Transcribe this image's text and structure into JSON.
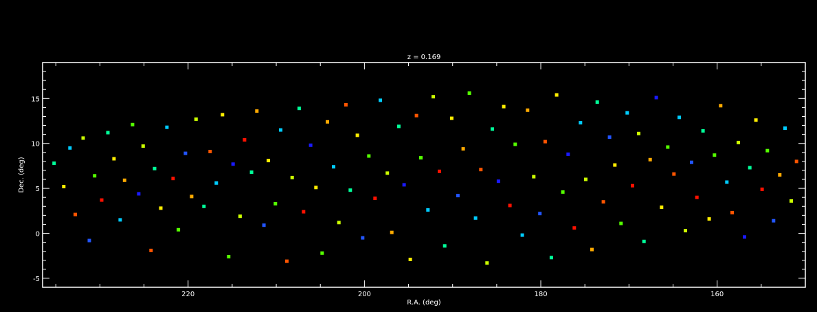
{
  "chart_data": {
    "type": "scatter",
    "title": "z = 0.169",
    "xlabel": "R.A. (deg)",
    "ylabel": "Dec. (deg)",
    "xlim": [
      236.5,
      150
    ],
    "ylim": [
      -6,
      19
    ],
    "x_ticks": [
      220,
      200,
      180,
      160
    ],
    "y_ticks": [
      -5,
      0,
      5,
      10,
      15
    ],
    "grid": false,
    "background": "#000000",
    "axis_color": "#ffffff",
    "color_scale": [
      "#1a1aff",
      "#2255ff",
      "#00ccff",
      "#00ff99",
      "#55ff00",
      "#ccff00",
      "#ffee00",
      "#ffaa00",
      "#ff5500",
      "#ff1100"
    ],
    "marker": "square",
    "points": [
      [
        235.2,
        7.8,
        3
      ],
      [
        234.1,
        5.2,
        6
      ],
      [
        233.4,
        9.5,
        2
      ],
      [
        232.8,
        2.1,
        8
      ],
      [
        231.9,
        10.6,
        5
      ],
      [
        231.2,
        -0.8,
        1
      ],
      [
        230.6,
        6.4,
        4
      ],
      [
        229.8,
        3.7,
        9
      ],
      [
        229.1,
        11.2,
        3
      ],
      [
        228.4,
        8.3,
        6
      ],
      [
        227.7,
        1.5,
        2
      ],
      [
        227.2,
        5.9,
        7
      ],
      [
        226.3,
        12.1,
        4
      ],
      [
        225.6,
        4.4,
        0
      ],
      [
        225.1,
        9.7,
        5
      ],
      [
        224.2,
        -1.9,
        8
      ],
      [
        223.8,
        7.2,
        3
      ],
      [
        223.1,
        2.8,
        6
      ],
      [
        222.4,
        11.8,
        2
      ],
      [
        221.7,
        6.1,
        9
      ],
      [
        221.1,
        0.4,
        4
      ],
      [
        220.3,
        8.9,
        1
      ],
      [
        219.6,
        4.1,
        7
      ],
      [
        219.1,
        12.7,
        5
      ],
      [
        218.2,
        3.0,
        3
      ],
      [
        217.5,
        9.1,
        8
      ],
      [
        216.8,
        5.6,
        2
      ],
      [
        216.1,
        13.2,
        6
      ],
      [
        215.4,
        -2.6,
        4
      ],
      [
        214.9,
        7.7,
        0
      ],
      [
        214.1,
        1.9,
        5
      ],
      [
        213.6,
        10.4,
        9
      ],
      [
        212.8,
        6.8,
        3
      ],
      [
        212.2,
        13.6,
        7
      ],
      [
        211.4,
        0.9,
        1
      ],
      [
        210.9,
        8.1,
        6
      ],
      [
        210.1,
        3.3,
        4
      ],
      [
        209.5,
        11.5,
        2
      ],
      [
        208.8,
        -3.1,
        8
      ],
      [
        208.2,
        6.2,
        5
      ],
      [
        207.4,
        13.9,
        3
      ],
      [
        206.9,
        2.4,
        9
      ],
      [
        206.1,
        9.8,
        0
      ],
      [
        205.5,
        5.1,
        6
      ],
      [
        204.8,
        -2.2,
        4
      ],
      [
        204.2,
        12.4,
        7
      ],
      [
        203.5,
        7.4,
        2
      ],
      [
        202.9,
        1.2,
        5
      ],
      [
        202.1,
        14.3,
        8
      ],
      [
        201.6,
        4.8,
        3
      ],
      [
        200.8,
        10.9,
        6
      ],
      [
        200.2,
        -0.5,
        1
      ],
      [
        199.5,
        8.6,
        4
      ],
      [
        198.8,
        3.9,
        9
      ],
      [
        198.2,
        14.8,
        2
      ],
      [
        197.4,
        6.7,
        5
      ],
      [
        196.9,
        0.1,
        7
      ],
      [
        196.1,
        11.9,
        3
      ],
      [
        195.5,
        5.4,
        0
      ],
      [
        194.8,
        -2.9,
        6
      ],
      [
        194.1,
        13.1,
        8
      ],
      [
        193.6,
        8.4,
        4
      ],
      [
        192.8,
        2.6,
        2
      ],
      [
        192.2,
        15.2,
        5
      ],
      [
        191.5,
        6.9,
        9
      ],
      [
        190.9,
        -1.4,
        3
      ],
      [
        190.1,
        12.8,
        6
      ],
      [
        189.4,
        4.2,
        1
      ],
      [
        188.8,
        9.4,
        7
      ],
      [
        188.1,
        15.6,
        4
      ],
      [
        187.4,
        1.7,
        2
      ],
      [
        186.8,
        7.1,
        8
      ],
      [
        186.1,
        -3.3,
        5
      ],
      [
        185.5,
        11.6,
        3
      ],
      [
        184.8,
        5.8,
        0
      ],
      [
        184.2,
        14.1,
        6
      ],
      [
        183.5,
        3.1,
        9
      ],
      [
        182.9,
        9.9,
        4
      ],
      [
        182.1,
        -0.2,
        2
      ],
      [
        181.5,
        13.7,
        7
      ],
      [
        180.8,
        6.3,
        5
      ],
      [
        180.1,
        2.2,
        1
      ],
      [
        179.5,
        10.2,
        8
      ],
      [
        178.8,
        -2.7,
        3
      ],
      [
        178.2,
        15.4,
        6
      ],
      [
        177.5,
        4.6,
        4
      ],
      [
        176.9,
        8.8,
        0
      ],
      [
        176.2,
        0.6,
        9
      ],
      [
        175.5,
        12.3,
        2
      ],
      [
        174.9,
        6.0,
        5
      ],
      [
        174.2,
        -1.8,
        7
      ],
      [
        173.6,
        14.6,
        3
      ],
      [
        172.9,
        3.5,
        8
      ],
      [
        172.2,
        10.7,
        1
      ],
      [
        171.6,
        7.6,
        6
      ],
      [
        170.9,
        1.1,
        4
      ],
      [
        170.2,
        13.4,
        2
      ],
      [
        169.6,
        5.3,
        9
      ],
      [
        168.9,
        11.1,
        5
      ],
      [
        168.3,
        -0.9,
        3
      ],
      [
        167.6,
        8.2,
        7
      ],
      [
        166.9,
        15.1,
        0
      ],
      [
        166.3,
        2.9,
        6
      ],
      [
        165.6,
        9.6,
        4
      ],
      [
        164.9,
        6.6,
        8
      ],
      [
        164.3,
        12.9,
        2
      ],
      [
        163.6,
        0.3,
        5
      ],
      [
        162.9,
        7.9,
        1
      ],
      [
        162.3,
        4.0,
        9
      ],
      [
        161.6,
        11.4,
        3
      ],
      [
        160.9,
        1.6,
        6
      ],
      [
        160.3,
        8.7,
        4
      ],
      [
        159.6,
        14.2,
        7
      ],
      [
        158.9,
        5.7,
        2
      ],
      [
        158.3,
        2.3,
        8
      ],
      [
        157.6,
        10.1,
        5
      ],
      [
        156.9,
        -0.4,
        0
      ],
      [
        156.3,
        7.3,
        3
      ],
      [
        155.6,
        12.6,
        6
      ],
      [
        154.9,
        4.9,
        9
      ],
      [
        154.3,
        9.2,
        4
      ],
      [
        153.6,
        1.4,
        1
      ],
      [
        152.9,
        6.5,
        7
      ],
      [
        152.3,
        11.7,
        2
      ],
      [
        151.6,
        3.6,
        5
      ],
      [
        151.0,
        8.0,
        8
      ]
    ]
  }
}
